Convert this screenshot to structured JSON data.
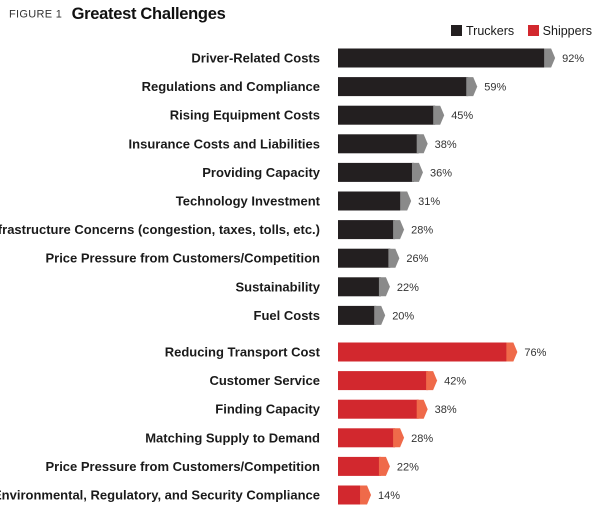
{
  "figure": {
    "label": "FIGURE 1",
    "title": "Greatest Challenges"
  },
  "colors": {
    "truckers": "#231f20",
    "truckers_tip": "#8a8a8a",
    "shippers": "#d2282e",
    "shippers_tip": "#ef6a4a"
  },
  "chart_data": {
    "type": "bar",
    "orientation": "horizontal",
    "title": "Greatest Challenges",
    "xlim": [
      0,
      100
    ],
    "unit": "%",
    "legend": {
      "placement": "top-right",
      "entries": [
        "Truckers",
        "Shippers"
      ]
    },
    "series": [
      {
        "name": "Truckers",
        "categories": [
          "Driver-Related Costs",
          "Regulations and Compliance",
          "Rising Equipment Costs",
          "Insurance Costs and Liabilities",
          "Providing Capacity",
          "Technology Investment",
          "Infrastructure Concerns (congestion, taxes, tolls, etc.)",
          "Price Pressure from Customers/Competition",
          "Sustainability",
          "Fuel Costs"
        ],
        "values": [
          92,
          59,
          45,
          38,
          36,
          31,
          28,
          26,
          22,
          20
        ],
        "labels": [
          "92%",
          "59%",
          "45%",
          "38%",
          "36%",
          "31%",
          "28%",
          "26%",
          "22%",
          "20%"
        ]
      },
      {
        "name": "Shippers",
        "categories": [
          "Reducing Transport Cost",
          "Customer Service",
          "Finding Capacity",
          "Matching Supply to Demand",
          "Price Pressure from Customers/Competition",
          "Environmental, Regulatory, and Security Compliance"
        ],
        "values": [
          76,
          42,
          38,
          28,
          22,
          14
        ],
        "labels": [
          "76%",
          "42%",
          "38%",
          "28%",
          "22%",
          "14%"
        ]
      }
    ]
  }
}
